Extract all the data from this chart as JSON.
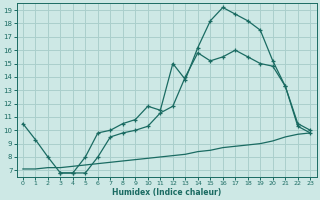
{
  "xlabel": "Humidex (Indice chaleur)",
  "bg_color": "#cde8e5",
  "grid_color": "#aacfcc",
  "line_color": "#1a6b62",
  "xlim": [
    -0.5,
    23.5
  ],
  "ylim": [
    6.5,
    19.5
  ],
  "xticks": [
    0,
    1,
    2,
    3,
    4,
    5,
    6,
    7,
    8,
    9,
    10,
    11,
    12,
    13,
    14,
    15,
    16,
    17,
    18,
    19,
    20,
    21,
    22,
    23
  ],
  "yticks": [
    7,
    8,
    9,
    10,
    11,
    12,
    13,
    14,
    15,
    16,
    17,
    18,
    19
  ],
  "curve1_x": [
    0,
    1,
    2,
    3,
    4,
    5,
    6,
    7,
    8,
    9,
    10,
    11,
    12,
    13,
    14,
    15,
    16,
    17,
    18,
    19,
    20,
    21,
    22,
    23
  ],
  "curve1_y": [
    10.5,
    9.3,
    8.0,
    6.8,
    6.8,
    8.0,
    9.8,
    10.0,
    10.5,
    10.8,
    11.8,
    11.5,
    15.0,
    13.8,
    16.2,
    18.2,
    19.2,
    18.7,
    18.2,
    17.5,
    15.2,
    13.3,
    10.3,
    9.8
  ],
  "curve2_x": [
    3,
    4,
    5,
    6,
    7,
    8,
    9,
    10,
    11,
    12,
    13,
    14,
    15,
    16,
    17,
    18,
    19,
    20,
    21,
    22,
    23
  ],
  "curve2_y": [
    6.8,
    6.8,
    6.8,
    8.0,
    9.5,
    9.8,
    10.0,
    10.3,
    11.3,
    11.8,
    14.0,
    15.8,
    15.2,
    15.5,
    16.0,
    15.5,
    15.0,
    14.8,
    13.3,
    10.5,
    10.0
  ],
  "curve3_x": [
    0,
    1,
    2,
    3,
    4,
    5,
    6,
    7,
    8,
    9,
    10,
    11,
    12,
    13,
    14,
    15,
    16,
    17,
    18,
    19,
    20,
    21,
    22,
    23
  ],
  "curve3_y": [
    7.1,
    7.1,
    7.2,
    7.2,
    7.3,
    7.4,
    7.5,
    7.6,
    7.7,
    7.8,
    7.9,
    8.0,
    8.1,
    8.2,
    8.4,
    8.5,
    8.7,
    8.8,
    8.9,
    9.0,
    9.2,
    9.5,
    9.7,
    9.8
  ]
}
